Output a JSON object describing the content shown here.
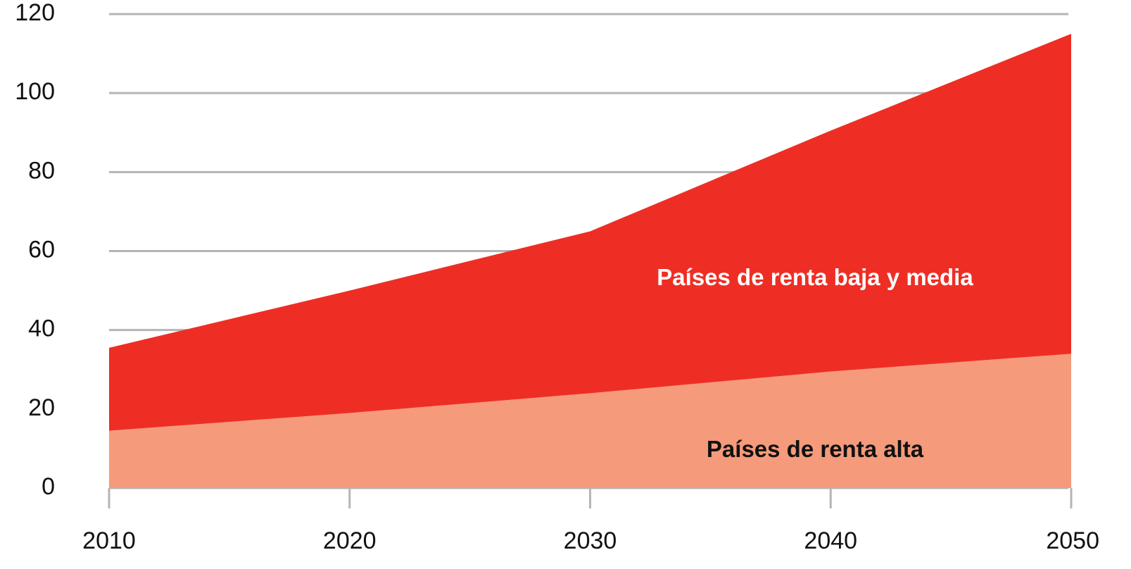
{
  "chart_data": {
    "type": "stacked_area",
    "x": [
      2010,
      2020,
      2030,
      2040,
      2050
    ],
    "series": [
      {
        "name": "Países de renta alta",
        "color": "#f59a7a",
        "values": [
          14.5,
          19,
          24,
          29.5,
          34
        ]
      },
      {
        "name": "Países de renta baja y media",
        "color": "#ee2e24",
        "values": [
          21,
          31,
          41,
          61,
          81
        ]
      }
    ],
    "xlim": [
      2010,
      2050
    ],
    "xticks": [
      2010,
      2020,
      2030,
      2040,
      2050
    ],
    "ylim": [
      0,
      120
    ],
    "yticks": [
      0,
      20,
      40,
      60,
      80,
      100,
      120
    ],
    "grid": true
  }
}
